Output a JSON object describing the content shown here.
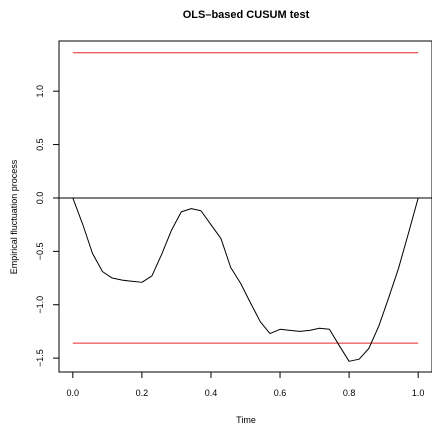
{
  "chart_data": {
    "type": "line",
    "title": "OLS–based CUSUM test",
    "xlabel": "Time",
    "ylabel": "Empirical fluctuation process",
    "xlim": [
      -0.04,
      1.04
    ],
    "ylim": [
      -1.63,
      1.47
    ],
    "x_ticks": [
      0.0,
      0.2,
      0.4,
      0.6,
      0.8,
      1.0
    ],
    "x_tick_labels": [
      "0.0",
      "0.2",
      "0.4",
      "0.6",
      "0.8",
      "1.0"
    ],
    "y_ticks": [
      -1.5,
      -1.0,
      -0.5,
      0.0,
      0.5,
      1.0
    ],
    "y_tick_labels": [
      "−1.5",
      "−1.0",
      "−0.5",
      "0.0",
      "0.5",
      "1.0"
    ],
    "grid": false,
    "boundaries": {
      "upper": 1.36,
      "lower": -1.36,
      "color": "#e8272a"
    },
    "reference_line": {
      "y": 0,
      "color": "#000000"
    },
    "series": [
      {
        "color": "#000000",
        "x": [
          0.0,
          0.029,
          0.057,
          0.086,
          0.114,
          0.143,
          0.171,
          0.2,
          0.229,
          0.257,
          0.286,
          0.314,
          0.343,
          0.371,
          0.4,
          0.429,
          0.457,
          0.486,
          0.514,
          0.543,
          0.571,
          0.6,
          0.629,
          0.657,
          0.686,
          0.714,
          0.743,
          0.771,
          0.8,
          0.829,
          0.857,
          0.886,
          0.914,
          0.943,
          0.971,
          1.0
        ],
        "y": [
          0.0,
          -0.25,
          -0.52,
          -0.69,
          -0.75,
          -0.77,
          -0.78,
          -0.79,
          -0.73,
          -0.53,
          -0.3,
          -0.13,
          -0.1,
          -0.12,
          -0.25,
          -0.38,
          -0.65,
          -0.8,
          -0.98,
          -1.16,
          -1.27,
          -1.23,
          -1.24,
          -1.25,
          -1.24,
          -1.22,
          -1.23,
          -1.38,
          -1.53,
          -1.51,
          -1.41,
          -1.2,
          -0.94,
          -0.66,
          -0.34,
          0.0
        ]
      }
    ]
  }
}
